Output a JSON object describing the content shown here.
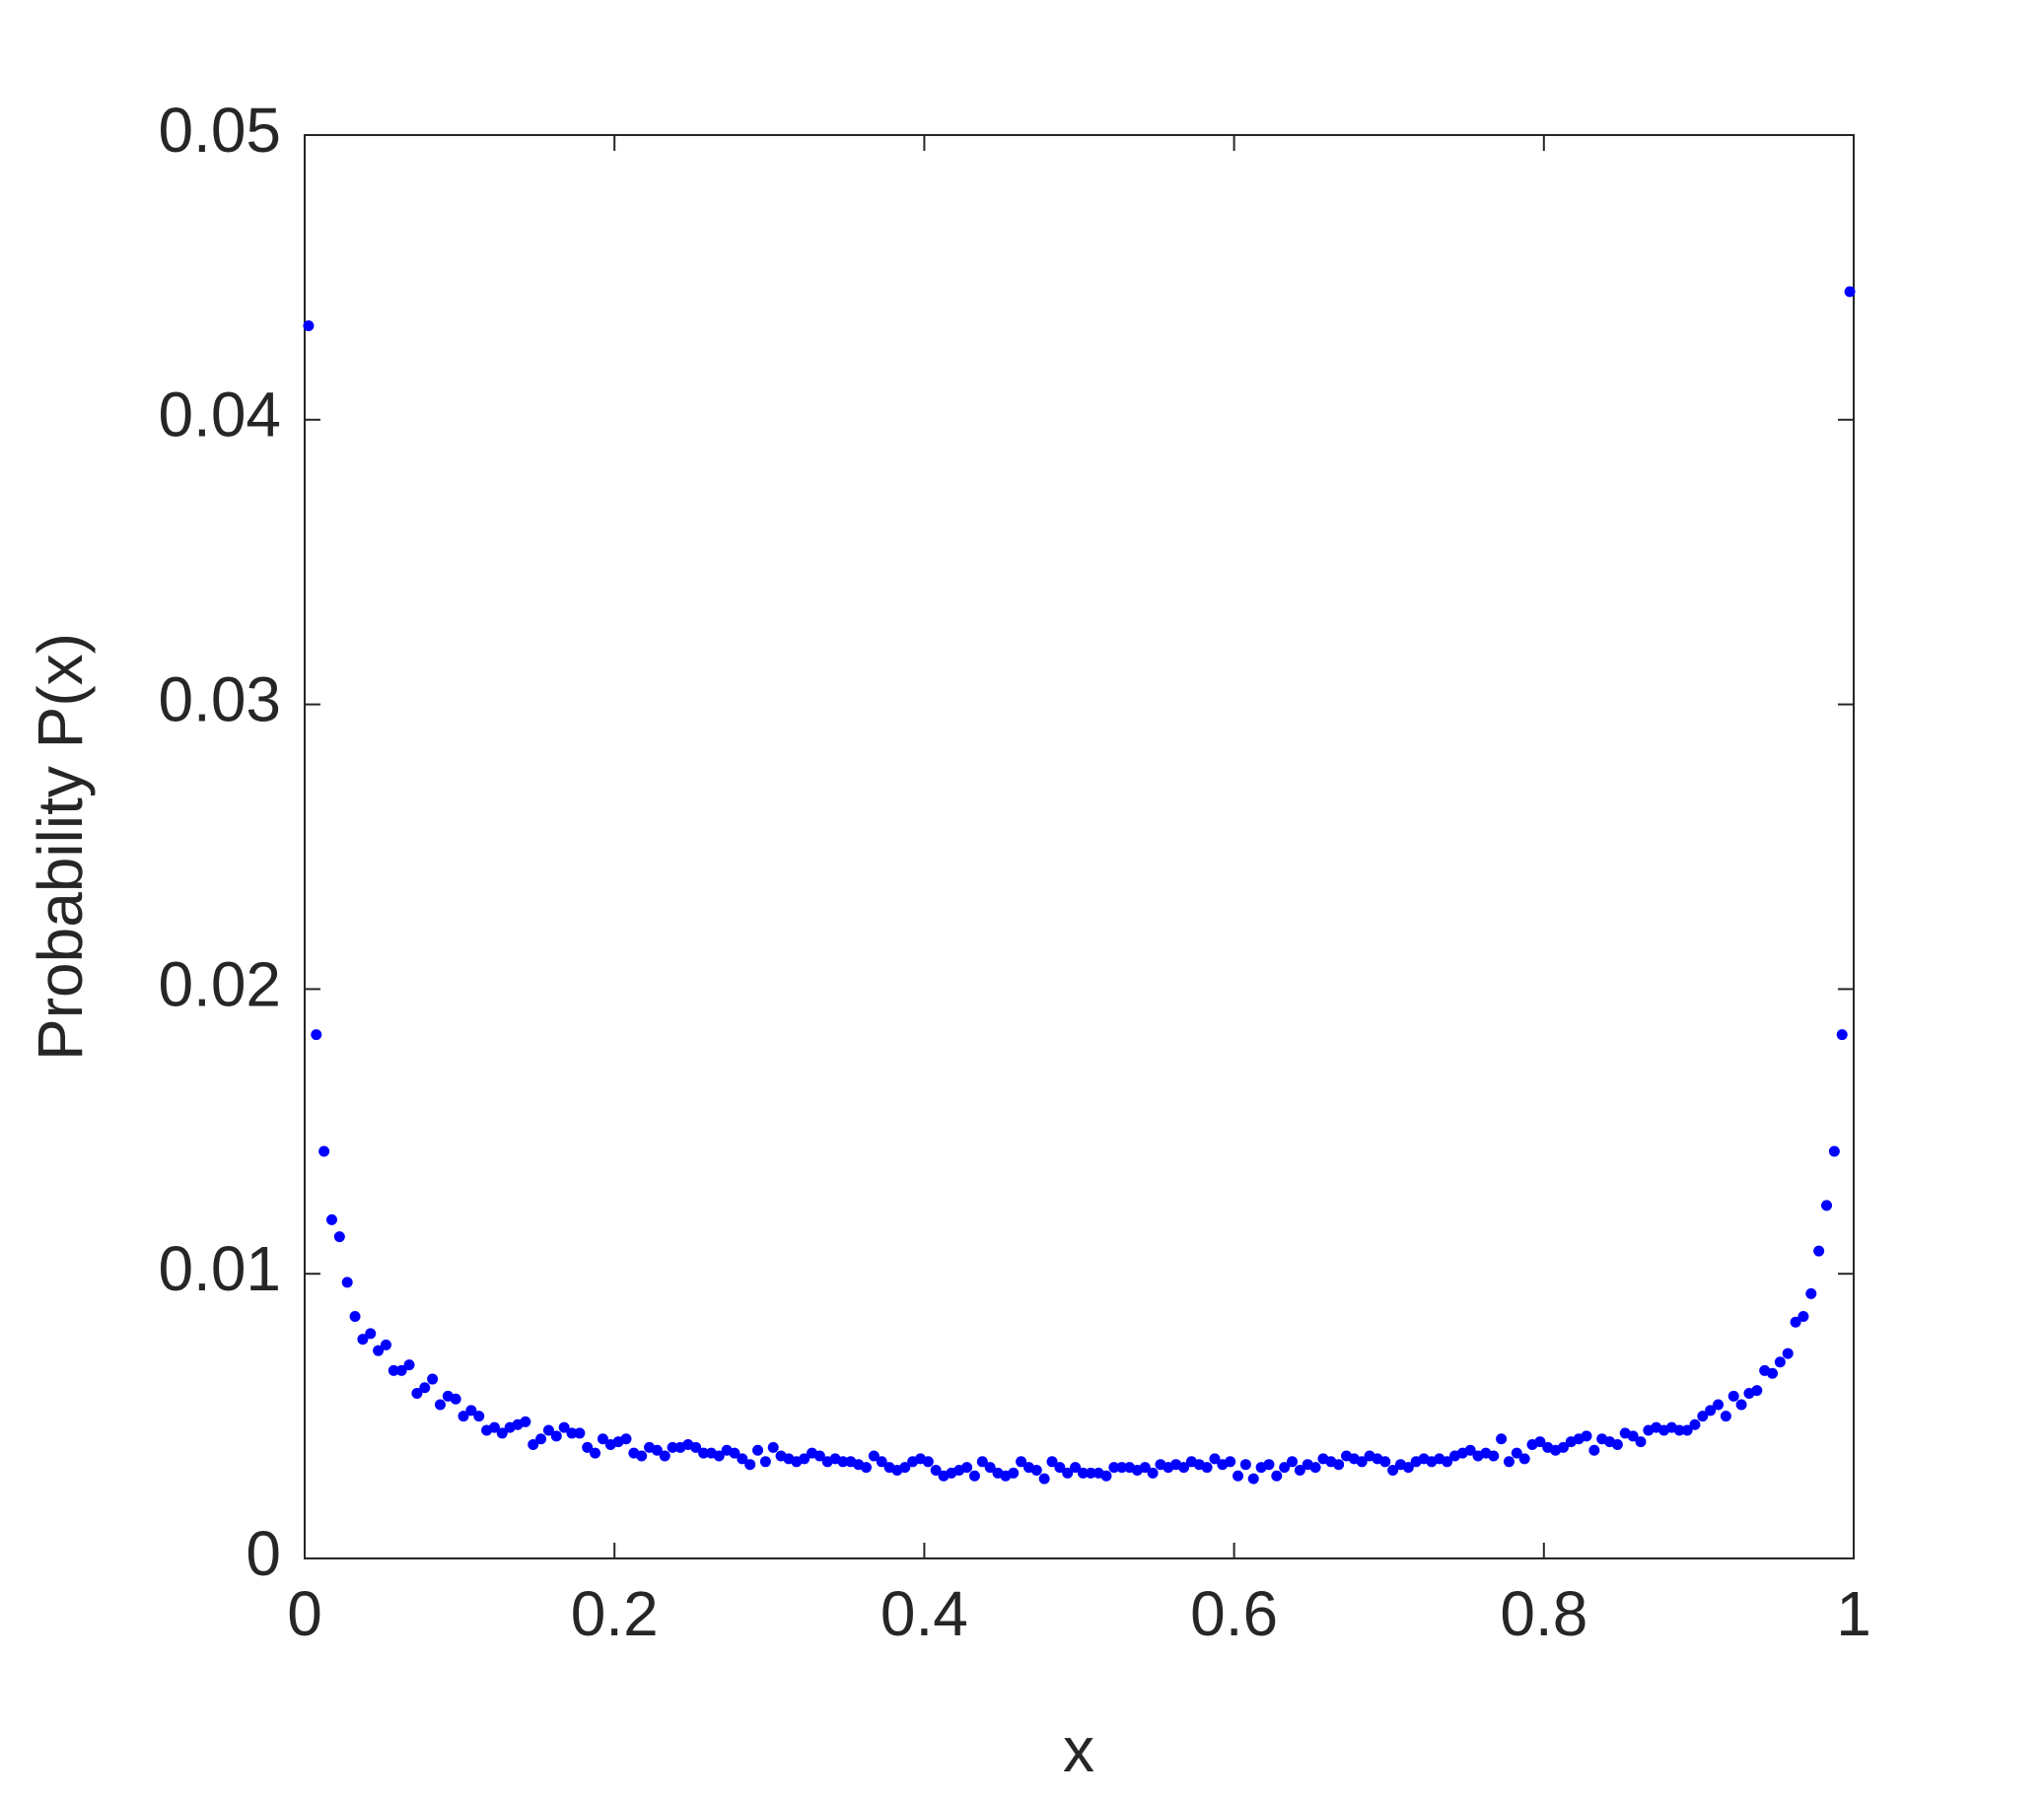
{
  "chart_data": {
    "type": "scatter",
    "xlabel": "x",
    "ylabel": "Probability P(x)",
    "xlim": [
      0,
      1
    ],
    "ylim": [
      0,
      0.05
    ],
    "xticks": [
      0,
      0.2,
      0.4,
      0.6,
      0.8,
      1
    ],
    "yticks": [
      0,
      0.01,
      0.02,
      0.03,
      0.04,
      0.05
    ],
    "grid": false,
    "color": "#0000ff",
    "x": [
      0.0025,
      0.0075,
      0.0125,
      0.0175,
      0.0225,
      0.0275,
      0.0325,
      0.0375,
      0.0425,
      0.0475,
      0.0525,
      0.0575,
      0.0625,
      0.0675,
      0.0725,
      0.0775,
      0.0825,
      0.0875,
      0.0925,
      0.0975,
      0.1025,
      0.1075,
      0.1125,
      0.1175,
      0.1225,
      0.1275,
      0.1325,
      0.1375,
      0.1425,
      0.1475,
      0.1525,
      0.1575,
      0.1625,
      0.1675,
      0.1725,
      0.1775,
      0.1825,
      0.1875,
      0.1925,
      0.1975,
      0.2025,
      0.2075,
      0.2125,
      0.2175,
      0.2225,
      0.2275,
      0.2325,
      0.2375,
      0.2425,
      0.2475,
      0.2525,
      0.2575,
      0.2625,
      0.2675,
      0.2725,
      0.2775,
      0.2825,
      0.2875,
      0.2925,
      0.2975,
      0.3025,
      0.3075,
      0.3125,
      0.3175,
      0.3225,
      0.3275,
      0.3325,
      0.3375,
      0.3425,
      0.3475,
      0.3525,
      0.3575,
      0.3625,
      0.3675,
      0.3725,
      0.3775,
      0.3825,
      0.3875,
      0.3925,
      0.3975,
      0.4025,
      0.4075,
      0.4125,
      0.4175,
      0.4225,
      0.4275,
      0.4325,
      0.4375,
      0.4425,
      0.4475,
      0.4525,
      0.4575,
      0.4625,
      0.4675,
      0.4725,
      0.4775,
      0.4825,
      0.4875,
      0.4925,
      0.4975,
      0.5025,
      0.5075,
      0.5125,
      0.5175,
      0.5225,
      0.5275,
      0.5325,
      0.5375,
      0.5425,
      0.5475,
      0.5525,
      0.5575,
      0.5625,
      0.5675,
      0.5725,
      0.5775,
      0.5825,
      0.5875,
      0.5925,
      0.5975,
      0.6025,
      0.6075,
      0.6125,
      0.6175,
      0.6225,
      0.6275,
      0.6325,
      0.6375,
      0.6425,
      0.6475,
      0.6525,
      0.6575,
      0.6625,
      0.6675,
      0.6725,
      0.6775,
      0.6825,
      0.6875,
      0.6925,
      0.6975,
      0.7025,
      0.7075,
      0.7125,
      0.7175,
      0.7225,
      0.7275,
      0.7325,
      0.7375,
      0.7425,
      0.7475,
      0.7525,
      0.7575,
      0.7625,
      0.7675,
      0.7725,
      0.7775,
      0.7825,
      0.7875,
      0.7925,
      0.7975,
      0.8025,
      0.8075,
      0.8125,
      0.8175,
      0.8225,
      0.8275,
      0.8325,
      0.8375,
      0.8425,
      0.8475,
      0.8525,
      0.8575,
      0.8625,
      0.8675,
      0.8725,
      0.8775,
      0.8825,
      0.8875,
      0.8925,
      0.8975,
      0.9025,
      0.9075,
      0.9125,
      0.9175,
      0.9225,
      0.9275,
      0.9325,
      0.9375,
      0.9425,
      0.9475,
      0.9525,
      0.9575,
      0.9625,
      0.9675,
      0.9725,
      0.9775,
      0.9825,
      0.9875,
      0.9925,
      0.9975
    ],
    "values": [
      0.0433,
      0.0184,
      0.0143,
      0.0119,
      0.0113,
      0.0097,
      0.0085,
      0.0077,
      0.0079,
      0.0073,
      0.0075,
      0.0066,
      0.0066,
      0.0068,
      0.0058,
      0.006,
      0.0063,
      0.0054,
      0.0057,
      0.0056,
      0.005,
      0.0052,
      0.005,
      0.0045,
      0.0046,
      0.0044,
      0.0046,
      0.0047,
      0.0048,
      0.004,
      0.0042,
      0.0045,
      0.0043,
      0.0046,
      0.0044,
      0.0044,
      0.0039,
      0.0037,
      0.0042,
      0.004,
      0.0041,
      0.0042,
      0.0037,
      0.0036,
      0.0039,
      0.0038,
      0.0036,
      0.0039,
      0.0039,
      0.004,
      0.0039,
      0.0037,
      0.0037,
      0.0036,
      0.0038,
      0.0037,
      0.0035,
      0.0033,
      0.0038,
      0.0034,
      0.0039,
      0.0036,
      0.0035,
      0.0034,
      0.0035,
      0.0037,
      0.0036,
      0.0034,
      0.0035,
      0.0034,
      0.0034,
      0.0033,
      0.0032,
      0.0036,
      0.0034,
      0.0032,
      0.0031,
      0.0032,
      0.0034,
      0.0035,
      0.0034,
      0.0031,
      0.0029,
      0.003,
      0.0031,
      0.0032,
      0.0029,
      0.0034,
      0.0032,
      0.003,
      0.0029,
      0.003,
      0.0034,
      0.0032,
      0.0031,
      0.0028,
      0.0034,
      0.0032,
      0.003,
      0.0032,
      0.003,
      0.003,
      0.003,
      0.0029,
      0.0032,
      0.0032,
      0.0032,
      0.0031,
      0.0032,
      0.003,
      0.0033,
      0.0032,
      0.0033,
      0.0032,
      0.0034,
      0.0033,
      0.0032,
      0.0035,
      0.0033,
      0.0034,
      0.0029,
      0.0033,
      0.0028,
      0.0032,
      0.0033,
      0.0029,
      0.0032,
      0.0034,
      0.0031,
      0.0033,
      0.0032,
      0.0035,
      0.0034,
      0.0033,
      0.0036,
      0.0035,
      0.0034,
      0.0036,
      0.0035,
      0.0034,
      0.0031,
      0.0033,
      0.0032,
      0.0034,
      0.0035,
      0.0034,
      0.0035,
      0.0034,
      0.0036,
      0.0037,
      0.0038,
      0.0036,
      0.0037,
      0.0036,
      0.0042,
      0.0034,
      0.0037,
      0.0035,
      0.004,
      0.0041,
      0.0039,
      0.0038,
      0.0039,
      0.0041,
      0.0042,
      0.0043,
      0.0038,
      0.0042,
      0.0041,
      0.004,
      0.0044,
      0.0043,
      0.0041,
      0.0045,
      0.0046,
      0.0045,
      0.0046,
      0.0045,
      0.0045,
      0.0047,
      0.005,
      0.0052,
      0.0054,
      0.005,
      0.0057,
      0.0054,
      0.0058,
      0.0059,
      0.0066,
      0.0065,
      0.0069,
      0.0072,
      0.0083,
      0.0085,
      0.0093,
      0.0108,
      0.0124,
      0.0143,
      0.0184,
      0.0445
    ]
  }
}
